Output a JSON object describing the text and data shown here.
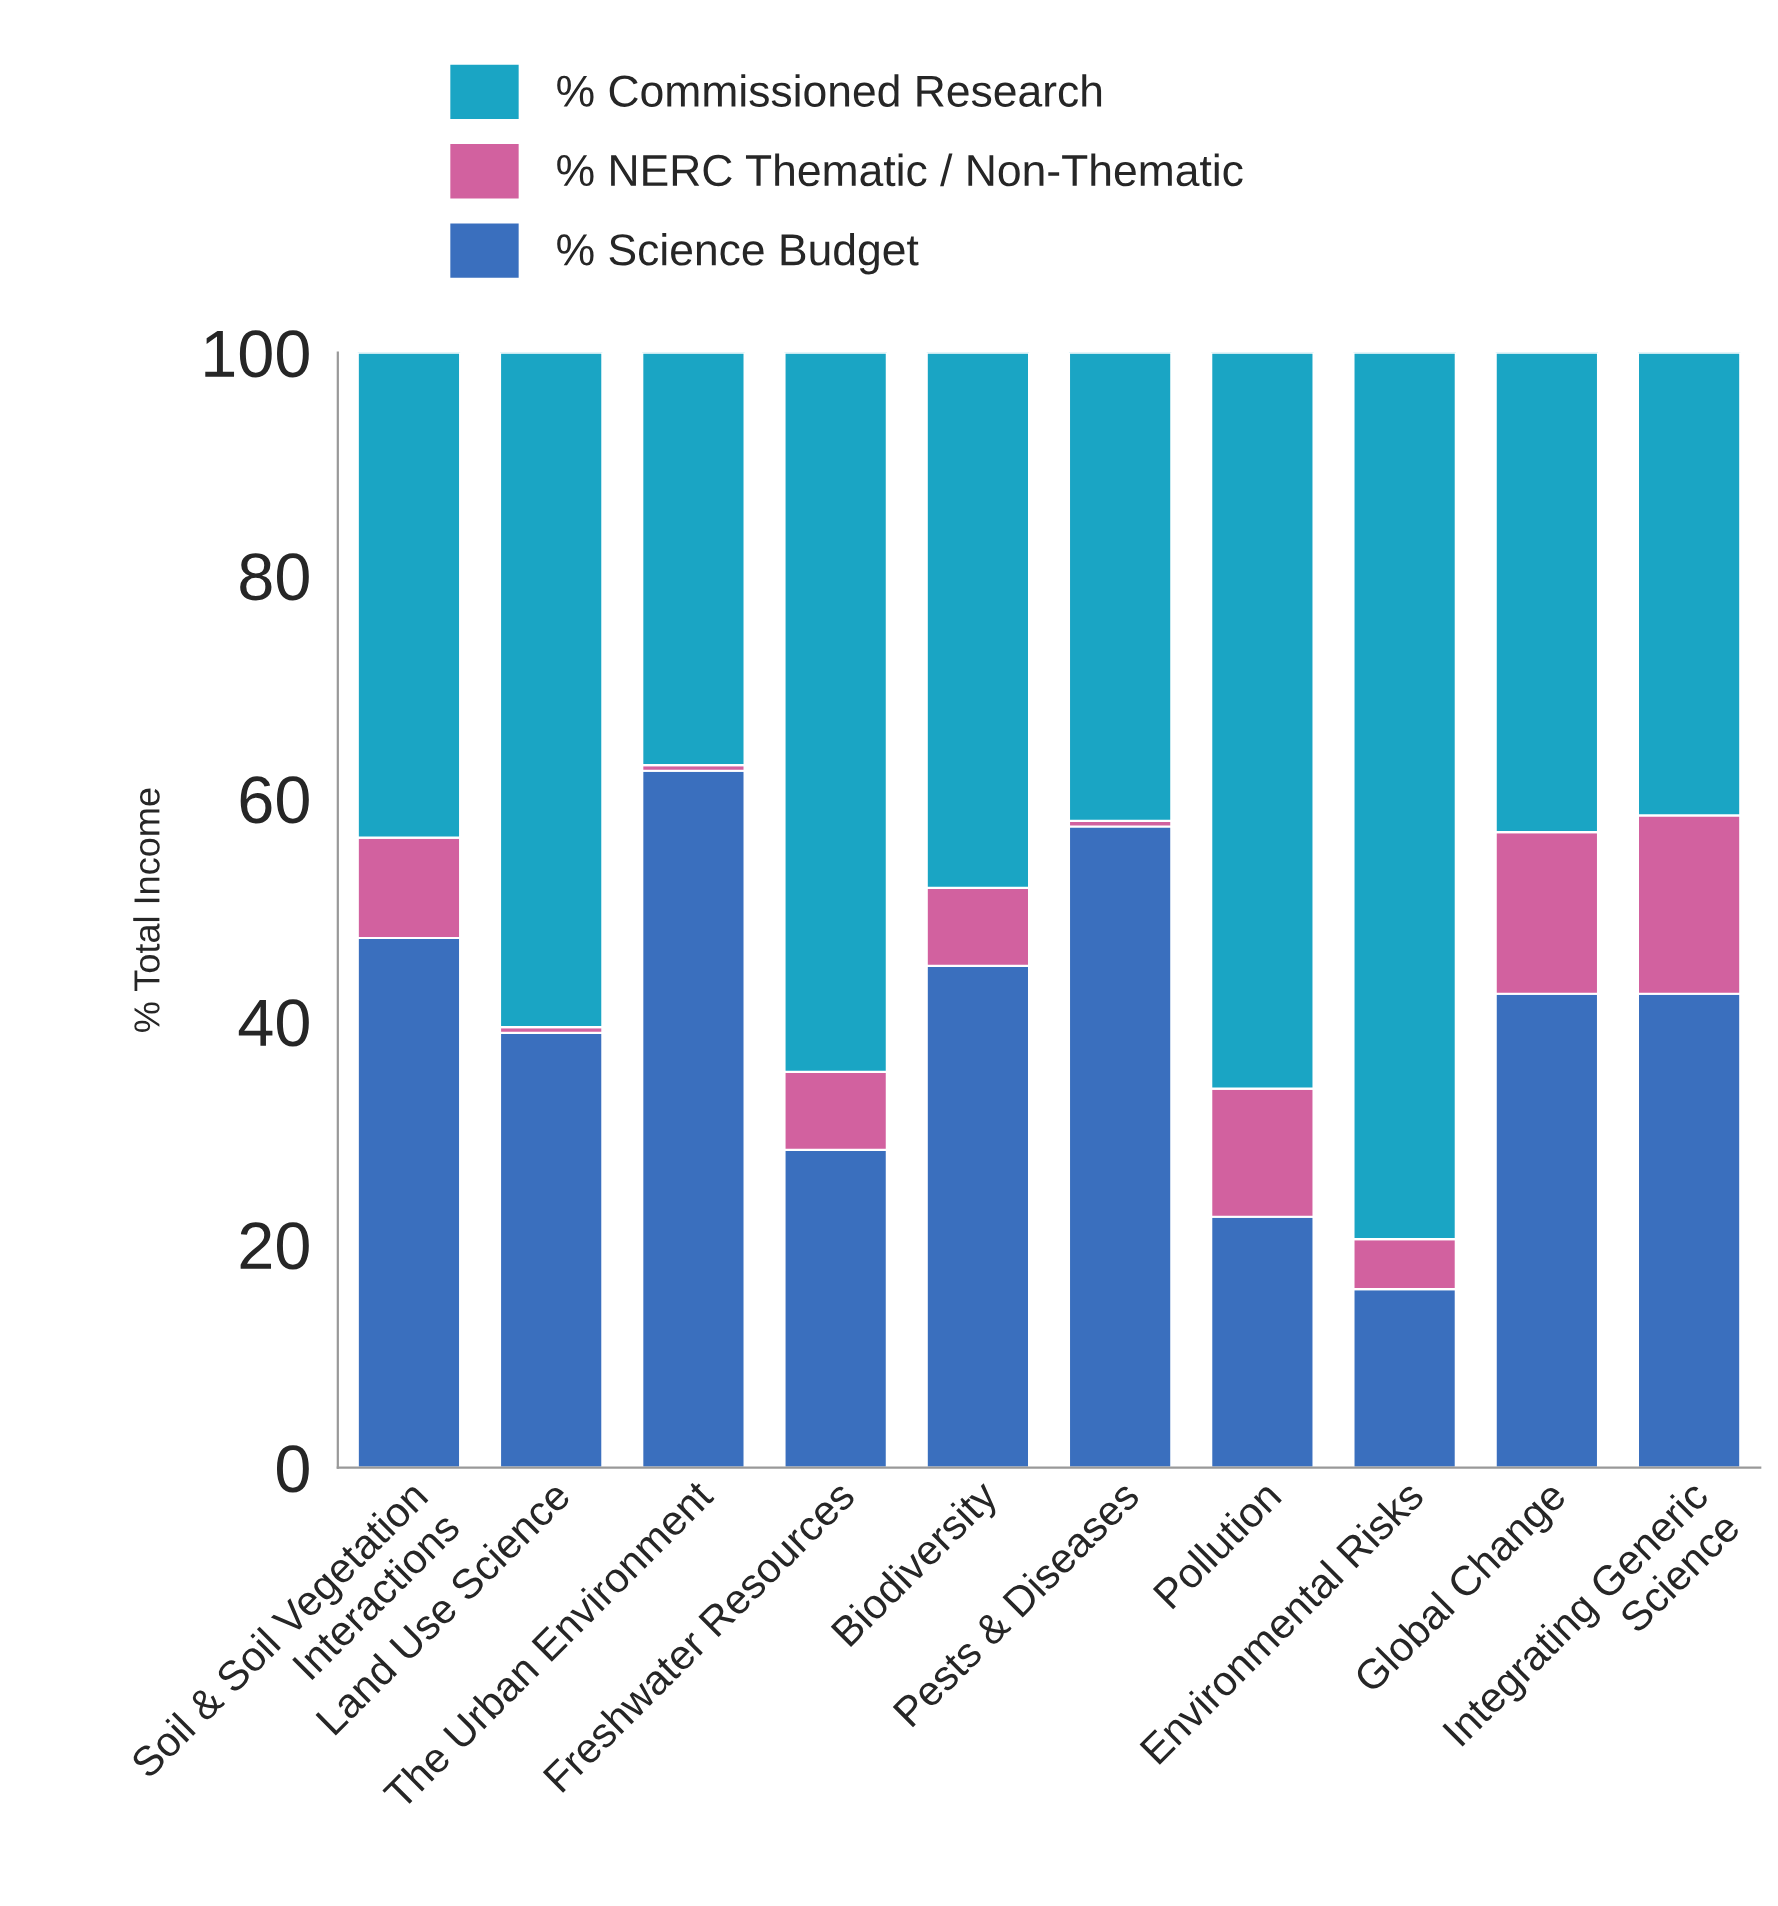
{
  "chart_data": {
    "type": "bar",
    "stacked": true,
    "ylabel": "% Total Income",
    "categories": [
      "Soil & Soil Vegetation\nInteractions",
      "Land Use Science",
      "The Urban Environment",
      "Freshwater Resources",
      "Biodiversity",
      "Pests & Diseases",
      "Pollution",
      "Environmental Risks",
      "Global Change",
      "Integrating Generic\nScience"
    ],
    "series": [
      {
        "name": "% Science Budget",
        "color": "#3a6fbe",
        "values": [
          47.5,
          39,
          62.5,
          28.5,
          45,
          57.5,
          22.5,
          16,
          42.5,
          42.5
        ]
      },
      {
        "name": "% NERC Thematic / Non-Thematic",
        "color": "#d2619f",
        "values": [
          9,
          0.5,
          0.5,
          7,
          7,
          0.5,
          11.5,
          4.5,
          14.5,
          16
        ]
      },
      {
        "name": "% Commissioned Research",
        "color": "#1aa5c4",
        "values": [
          43.5,
          60.5,
          37,
          64.5,
          48,
          42,
          66,
          79.5,
          43,
          41.5
        ]
      }
    ],
    "ylim": [
      0,
      100
    ],
    "yticks": [
      0,
      20,
      40,
      60,
      80,
      100
    ],
    "grid": false,
    "legend": "top"
  }
}
